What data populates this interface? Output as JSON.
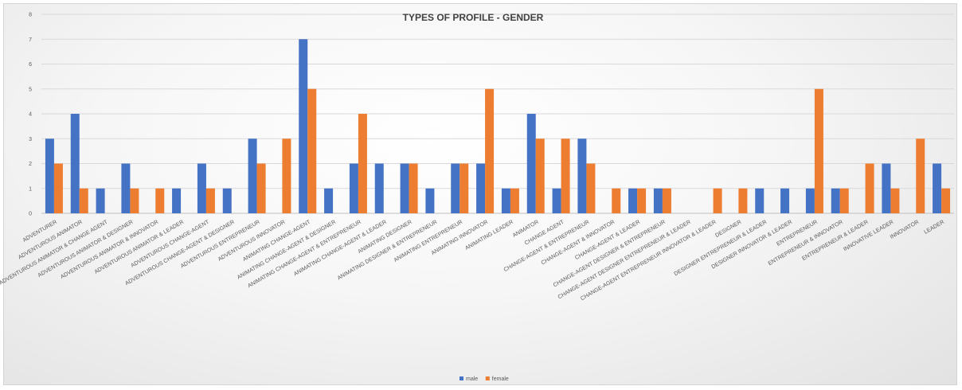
{
  "chart_data": {
    "type": "bar",
    "title": "TYPES OF PROFILE - GENDER",
    "ylim": [
      0,
      8
    ],
    "yticks": [
      0,
      1,
      2,
      3,
      4,
      5,
      6,
      7,
      8
    ],
    "grid": true,
    "legend_position": "bottom",
    "categories": [
      "ADVENTURER",
      "ADVENTUROUS ANIMATOR",
      "ADVENTUROUS ANIMATOR & CHANGE AGENT",
      "ADVENTUROUS ANIMATOR & DESIGNER",
      "ADVENTUROUS ANIMATOR & INNOVATOR",
      "ADVENTUROUS ANIMATOR & LEADER",
      "ADVENTUROUS CHANGE-AGENT",
      "ADVENTUROUS CHANGE-AGENT & DESIGNER",
      "ADVENTUROUS ENTREPRENEUR",
      "ADVENTUROUS INNOVATOR",
      "ANIMATING CHANGE-AGENT",
      "ANIMATING CHANGE-AGENT & DESIGNER",
      "ANIMATING CHANGE-AGENT & ENTREPRENEUR",
      "ANIMATING CHANGE-AGENT & LEADER",
      "ANIMATING DESIGNER",
      "ANIMATING DESIGNER & ENTREPRENEUR",
      "ANIMATING ENTREPRENEUR",
      "ANIMATING INNOVATOR",
      "ANIMATING LEADER",
      "ANIMATOR",
      "CHANGE AGENT",
      "CHANGE-AGENT & ENTREPRENEUR",
      "CHANGE-AGENT & INNOVATOR",
      "CHANGE-AGENT & LEADER",
      "CHANGE-AGENT DESIGNER & ENTREPRENEUR",
      "CHANGE-AGENT DESIGNER ENTREPRENEUR & LEADER",
      "CHANGE-AGENT ENTREPRENEUR INNOVATOR & LEADER",
      "DESIGNER",
      "DESIGNER ENTREPRENEUR & LEADER",
      "DESIGNER INNOVATOR & LEADER",
      "ENTREPRENEUR",
      "ENTREPRENEUR & INNOVATOR",
      "ENTREPRENEUR & LEADER",
      "INNOVATIVE LEADER",
      "INNOVATOR",
      "LEADER"
    ],
    "series": [
      {
        "name": "male",
        "color": "#4472C4",
        "values": [
          3,
          4,
          1,
          2,
          0,
          1,
          2,
          1,
          3,
          0,
          7,
          1,
          2,
          2,
          2,
          1,
          2,
          2,
          1,
          4,
          1,
          3,
          0,
          1,
          1,
          0,
          0,
          0,
          1,
          1,
          1,
          1,
          0,
          2,
          0,
          2
        ]
      },
      {
        "name": "female",
        "color": "#ED7D31",
        "values": [
          2,
          1,
          0,
          1,
          1,
          0,
          1,
          0,
          2,
          3,
          5,
          0,
          4,
          0,
          2,
          0,
          2,
          5,
          1,
          3,
          3,
          2,
          1,
          1,
          1,
          0,
          1,
          1,
          0,
          0,
          5,
          1,
          2,
          1,
          3,
          1
        ]
      }
    ]
  }
}
